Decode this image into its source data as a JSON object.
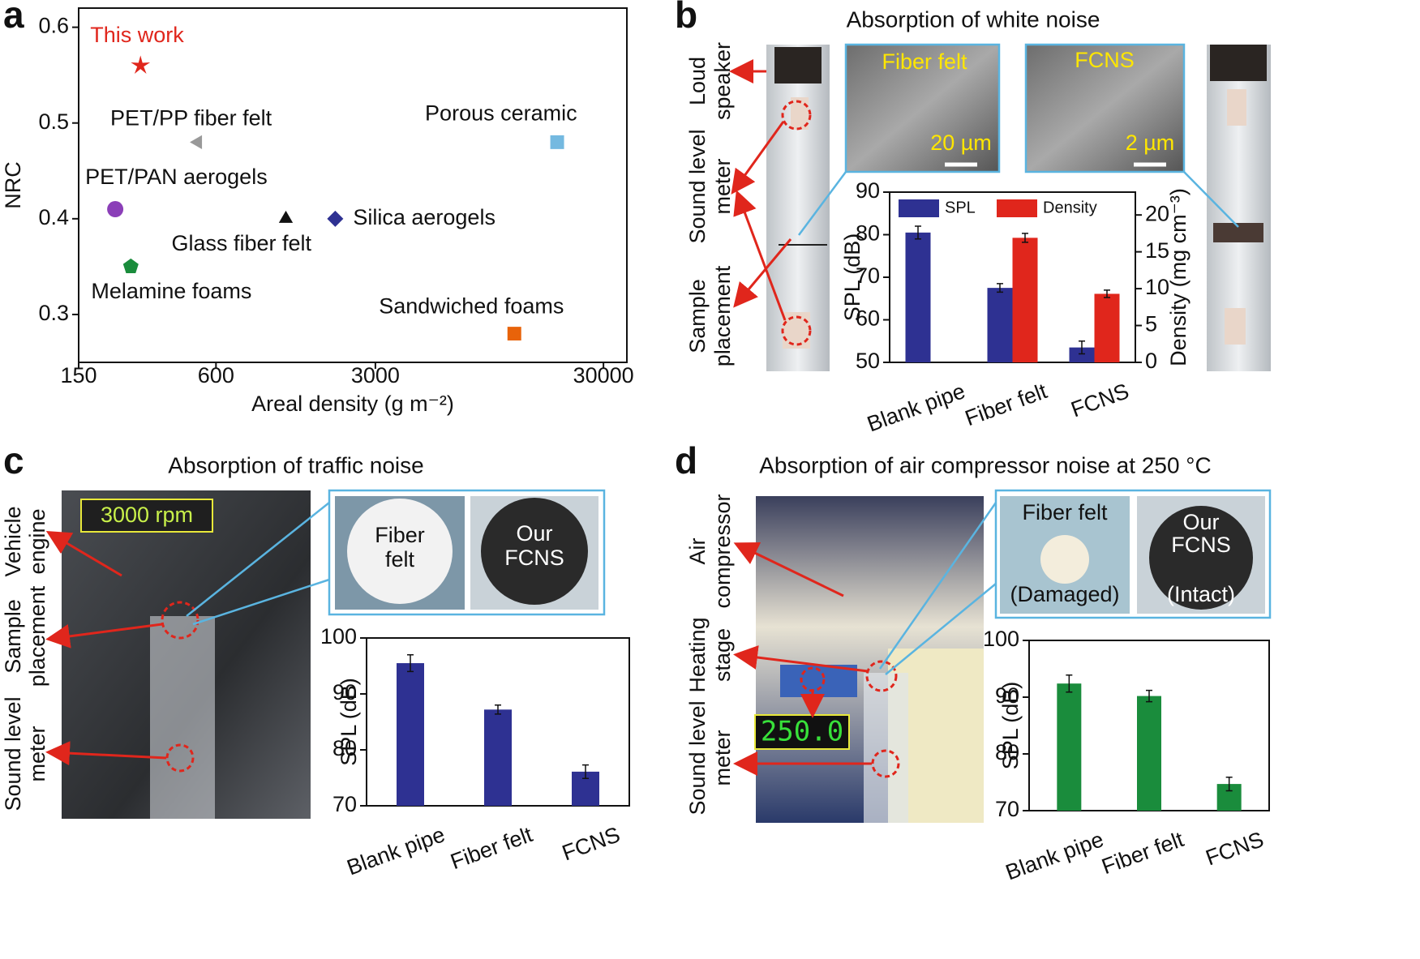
{
  "chart_data": [
    {
      "type": "scatter",
      "xlabel": "Areal density (g m⁻²)",
      "ylabel": "NRC",
      "xscale": "log",
      "xlim": [
        150,
        38000
      ],
      "xticks": [
        150,
        600,
        3000,
        30000
      ],
      "ylim": [
        0.25,
        0.62
      ],
      "yticks": [
        0.3,
        0.4,
        0.5,
        0.6
      ],
      "series": [
        {
          "name": "This work",
          "color": "#e0261c",
          "label_color": "#e0261c",
          "marker": "star",
          "x": [
            280
          ],
          "values": [
            0.56
          ]
        },
        {
          "name": "PET/PP fiber felt",
          "color": "#999999",
          "marker": "triangle-left",
          "x": [
            500
          ],
          "values": [
            0.48
          ]
        },
        {
          "name": "Porous ceramic",
          "color": "#74b9e0",
          "marker": "square",
          "x": [
            18800
          ],
          "values": [
            0.48
          ]
        },
        {
          "name": "PET/PAN aerogels",
          "color": "#8b3fb8",
          "marker": "circle",
          "x": [
            217
          ],
          "values": [
            0.41
          ]
        },
        {
          "name": "Glass fiber felt",
          "color": "#111111",
          "marker": "triangle-up",
          "x": [
            1215
          ],
          "values": [
            0.4
          ]
        },
        {
          "name": "Silica aerogels",
          "color": "#2e3192",
          "marker": "diamond",
          "x": [
            2000
          ],
          "values": [
            0.4
          ]
        },
        {
          "name": "Melamine foams",
          "color": "#1a8c3c",
          "marker": "pentagon",
          "x": [
            254
          ],
          "values": [
            0.35
          ]
        },
        {
          "name": "Sandwiched foams",
          "color": "#e8630a",
          "marker": "square",
          "x": [
            12200
          ],
          "values": [
            0.28
          ]
        }
      ]
    },
    {
      "type": "bar",
      "categories": [
        "Blank pipe",
        "Fiber felt",
        "FCNS"
      ],
      "ylabel": "SPL (dB)",
      "y2label": "Density (mg cm⁻³)",
      "ylim": [
        50,
        90
      ],
      "yticks": [
        50,
        60,
        70,
        80,
        90
      ],
      "y2lim": [
        0,
        23.1
      ],
      "y2ticks": [
        0,
        5,
        10,
        15,
        20
      ],
      "legend": "top",
      "series": [
        {
          "name": "SPL",
          "color": "#2e3192",
          "values": [
            80.5,
            67.5,
            53.5
          ],
          "errors": [
            1.5,
            1.0,
            1.5
          ]
        },
        {
          "name": "Density",
          "color": "#e0261c",
          "axis": "y2",
          "values": [
            null,
            16.9,
            9.3
          ],
          "errors": [
            null,
            0.6,
            0.5
          ]
        }
      ]
    },
    {
      "type": "bar",
      "categories": [
        "Blank pipe",
        "Fiber felt",
        "FCNS"
      ],
      "ylabel": "SPL (dB)",
      "ylim": [
        70,
        100
      ],
      "yticks": [
        70,
        80,
        90,
        100
      ],
      "series": [
        {
          "name": "SPL",
          "color": "#2e3192",
          "values": [
            95.5,
            87.2,
            76.1
          ],
          "errors": [
            1.5,
            0.8,
            1.2
          ]
        }
      ]
    },
    {
      "type": "bar",
      "categories": [
        "Blank pipe",
        "Fiber felt",
        "FCNS"
      ],
      "ylabel": "SPL (dB)",
      "ylim": [
        70,
        100
      ],
      "yticks": [
        70,
        80,
        90,
        100
      ],
      "series": [
        {
          "name": "SPL",
          "color": "#1a8c3c",
          "values": [
            92.4,
            90.2,
            74.7
          ],
          "errors": [
            1.5,
            1.0,
            1.2
          ]
        }
      ]
    }
  ],
  "panels": [
    {
      "label": "a"
    },
    {
      "label": "b",
      "title": "Absorption of white noise",
      "side_labels": [
        [
          "Loud",
          "speaker"
        ],
        [
          "Sound level",
          "meter"
        ],
        [
          "Sample",
          "placement"
        ]
      ],
      "insets": [
        {
          "name": "Fiber felt",
          "scale": "20 µm"
        },
        {
          "name": "FCNS",
          "scale": "2 µm"
        }
      ]
    },
    {
      "label": "c",
      "title": "Absorption of traffic noise",
      "side_labels": [
        [
          "Vehicle",
          "engine"
        ],
        [
          "Sample",
          "placement"
        ],
        [
          "Sound level",
          "meter"
        ]
      ],
      "badge": "3000 rpm",
      "insets": [
        [
          "Fiber",
          "felt"
        ],
        [
          "Our",
          "FCNS"
        ]
      ]
    },
    {
      "label": "d",
      "title": "Absorption of air compressor noise at 250 °C",
      "side_labels": [
        [
          "Air",
          "compressor"
        ],
        [
          "Heating",
          "stage"
        ],
        [
          "Sound level",
          "meter"
        ]
      ],
      "display": "250.0",
      "insets": [
        [
          "Fiber felt",
          "(Damaged)"
        ],
        [
          "Our",
          "FCNS",
          "(Intact)"
        ]
      ]
    }
  ]
}
